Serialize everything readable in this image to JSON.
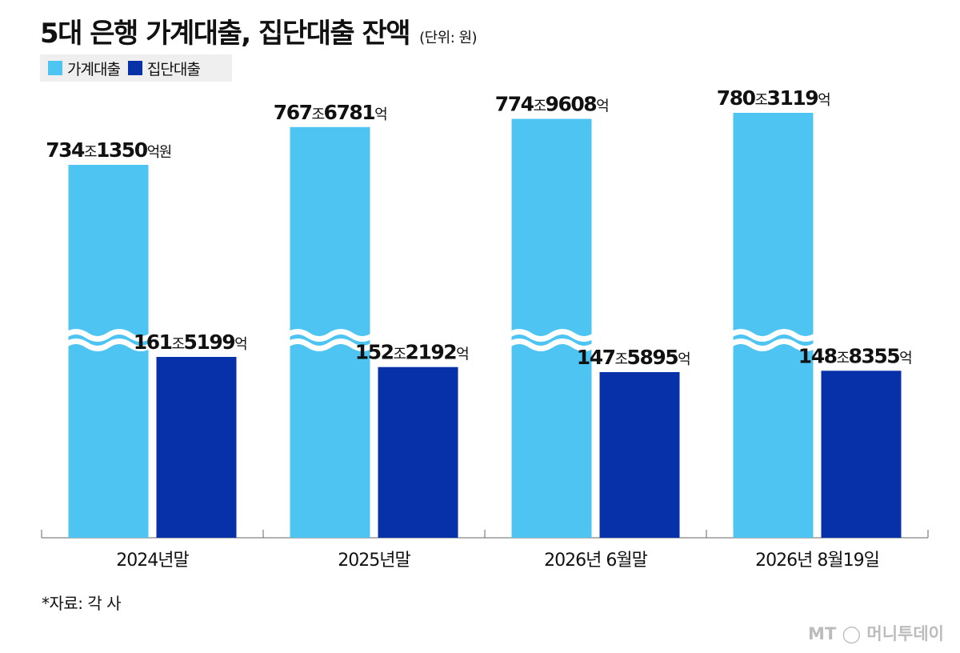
{
  "title": "5대 은행 가계대출, 집단대출 잔액",
  "unit": "(단위: 원)",
  "legend": [
    {
      "label": "가계대출",
      "color": "#4dc4f2"
    },
    {
      "label": "집단대출",
      "color": "#0731a8"
    }
  ],
  "source": "*자료: 각 사",
  "watermark": "MT ◯ 머니투데이",
  "chart_data": {
    "type": "bar",
    "categories": [
      "2024년말",
      "2025년말",
      "2026년 6월말",
      "2026년 8월19일"
    ],
    "series": [
      {
        "name": "가계대출",
        "color": "#4dc4f2",
        "values": [
          7341350,
          7676781,
          7749608,
          7803119
        ],
        "labels": [
          {
            "num1": "734",
            "unit1": "조",
            "num2": "1350",
            "unit2": "억원"
          },
          {
            "num1": "767",
            "unit1": "조",
            "num2": "6781",
            "unit2": "억"
          },
          {
            "num1": "774",
            "unit1": "조",
            "num2": "9608",
            "unit2": "억"
          },
          {
            "num1": "780",
            "unit1": "조",
            "num2": "3119",
            "unit2": "억"
          }
        ]
      },
      {
        "name": "집단대출",
        "color": "#0731a8",
        "values": [
          1615199,
          1522192,
          1475895,
          1488355
        ],
        "labels": [
          {
            "num1": "161",
            "unit1": "조",
            "num2": "5199",
            "unit2": "억"
          },
          {
            "num1": "152",
            "unit1": "조",
            "num2": "2192",
            "unit2": "억"
          },
          {
            "num1": "147",
            "unit1": "조",
            "num2": "5895",
            "unit2": "억"
          },
          {
            "num1": "148",
            "unit1": "조",
            "num2": "8355",
            "unit2": "억"
          }
        ]
      }
    ],
    "value_unit": "억원",
    "axis_break": true,
    "grid": false
  }
}
